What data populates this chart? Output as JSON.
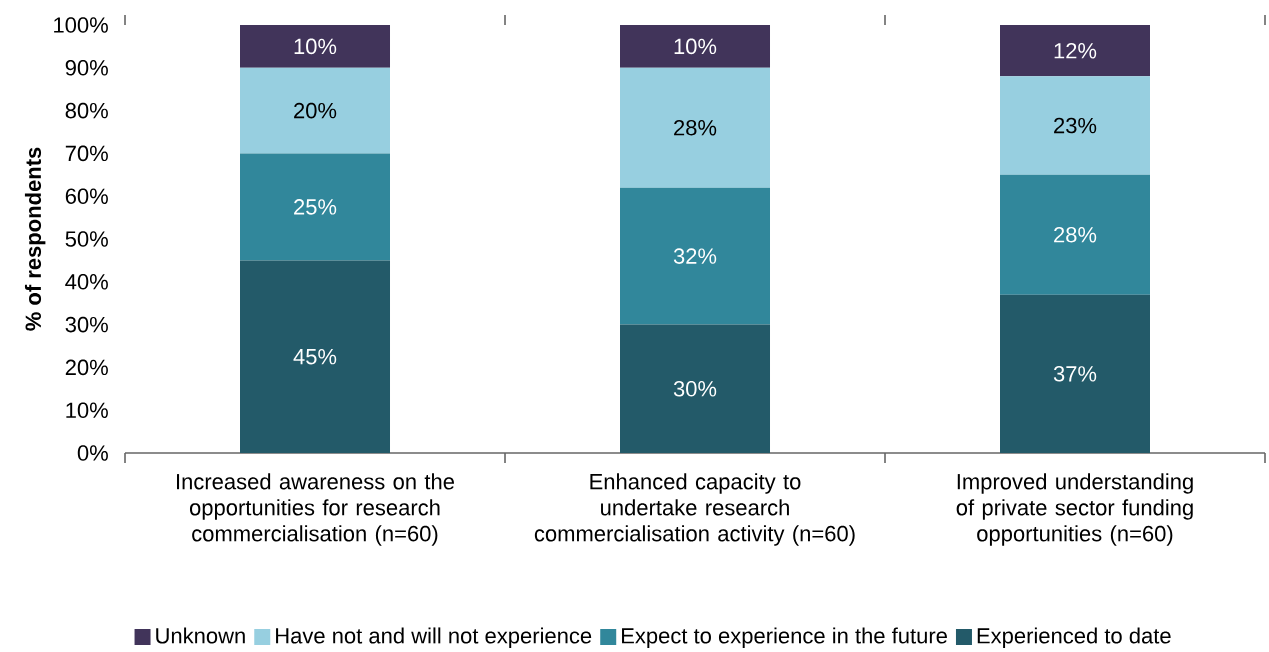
{
  "chart_data": {
    "type": "bar",
    "stacked": true,
    "ylabel": "% of respondents",
    "categories": [
      "Increased awareness on the opportunities for research commercialisation (n=60)",
      "Enhanced capacity to undertake research commercialisation activity (n=60)",
      "Improved understanding of private sector funding opportunities (n=60)"
    ],
    "series": [
      {
        "name": "Experienced to date",
        "color": "#235a69",
        "values": [
          45,
          30,
          37
        ],
        "value_labels": [
          "45%",
          "30%",
          "37%"
        ]
      },
      {
        "name": "Expect to experience in the future",
        "color": "#31879b",
        "values": [
          25,
          32,
          28
        ],
        "value_labels": [
          "25%",
          "32%",
          "28%"
        ]
      },
      {
        "name": "Have not and will not experience",
        "color": "#97cfe0",
        "values": [
          20,
          28,
          23
        ],
        "value_labels": [
          "20%",
          "28%",
          "23%"
        ]
      },
      {
        "name": "Unknown",
        "color": "#41345a",
        "values": [
          10,
          10,
          12
        ],
        "value_labels": [
          "10%",
          "10%",
          "12%"
        ]
      }
    ],
    "ylim": [
      0,
      100
    ],
    "yticks": [
      {
        "value": 0,
        "label": "0%"
      },
      {
        "value": 10,
        "label": "10%"
      },
      {
        "value": 20,
        "label": "20%"
      },
      {
        "value": 30,
        "label": "30%"
      },
      {
        "value": 40,
        "label": "40%"
      },
      {
        "value": 50,
        "label": "50%"
      },
      {
        "value": 60,
        "label": "60%"
      },
      {
        "value": 70,
        "label": "70%"
      },
      {
        "value": 80,
        "label": "80%"
      },
      {
        "value": 90,
        "label": "90%"
      },
      {
        "value": 100,
        "label": "100%"
      }
    ],
    "grid": false,
    "legend": "bottom"
  }
}
